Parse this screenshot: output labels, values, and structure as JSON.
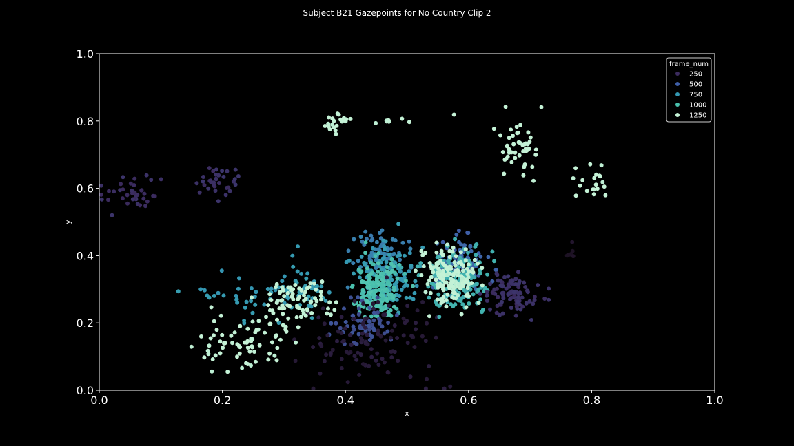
{
  "chart_data": {
    "type": "scatter",
    "title": "Subject B21 Gazepoints for No Country Clip 2",
    "xlabel": "x",
    "ylabel": "y",
    "xlim": [
      0.0,
      1.0
    ],
    "ylim": [
      0.0,
      1.0
    ],
    "x_ticks": [
      "0.0",
      "0.2",
      "0.4",
      "0.6",
      "0.8",
      "1.0"
    ],
    "y_ticks": [
      "0.0",
      "0.2",
      "0.4",
      "0.6",
      "0.8",
      "1.0"
    ],
    "grid": false,
    "background": "#000000",
    "legend": {
      "title": "frame_num",
      "placement": "top-right",
      "entries": [
        {
          "label": "250",
          "color": "#3b2b5e"
        },
        {
          "label": "500",
          "color": "#3f5fa8"
        },
        {
          "label": "750",
          "color": "#3498b2"
        },
        {
          "label": "1000",
          "color": "#49c0ad"
        },
        {
          "label": "1250",
          "color": "#c4f2d6"
        }
      ]
    },
    "color_scale": [
      {
        "frame": 0,
        "color": "#1a0f1e"
      },
      {
        "frame": 250,
        "color": "#3b2b5e"
      },
      {
        "frame": 500,
        "color": "#3f5fa8"
      },
      {
        "frame": 750,
        "color": "#3498b2"
      },
      {
        "frame": 1000,
        "color": "#49c0ad"
      },
      {
        "frame": 1250,
        "color": "#c4f2d6"
      }
    ],
    "clusters": [
      {
        "x": 0.06,
        "y": 0.59,
        "sx": 0.022,
        "sy": 0.025,
        "n": 38,
        "frame": 265
      },
      {
        "x": 0.19,
        "y": 0.61,
        "sx": 0.018,
        "sy": 0.028,
        "n": 34,
        "frame": 275
      },
      {
        "x": 0.385,
        "y": 0.795,
        "sx": 0.009,
        "sy": 0.018,
        "n": 22,
        "frame": 1260
      },
      {
        "x": 0.48,
        "y": 0.8,
        "sx": 0.018,
        "sy": 0.006,
        "n": 9,
        "frame": 1260
      },
      {
        "x": 0.575,
        "y": 0.815,
        "sx": 0.002,
        "sy": 0.002,
        "n": 1,
        "frame": 1260
      },
      {
        "x": 0.68,
        "y": 0.73,
        "sx": 0.018,
        "sy": 0.045,
        "n": 48,
        "frame": 1265
      },
      {
        "x": 0.8,
        "y": 0.625,
        "sx": 0.016,
        "sy": 0.03,
        "n": 20,
        "frame": 1265
      },
      {
        "x": 0.77,
        "y": 0.41,
        "sx": 0.006,
        "sy": 0.02,
        "n": 7,
        "frame": 35
      },
      {
        "x": 0.46,
        "y": 0.41,
        "sx": 0.022,
        "sy": 0.04,
        "n": 70,
        "frame": 640
      },
      {
        "x": 0.47,
        "y": 0.33,
        "sx": 0.025,
        "sy": 0.05,
        "n": 120,
        "frame": 760
      },
      {
        "x": 0.45,
        "y": 0.3,
        "sx": 0.017,
        "sy": 0.045,
        "n": 170,
        "frame": 1000
      },
      {
        "x": 0.43,
        "y": 0.2,
        "sx": 0.025,
        "sy": 0.035,
        "n": 60,
        "frame": 420
      },
      {
        "x": 0.44,
        "y": 0.15,
        "sx": 0.06,
        "sy": 0.06,
        "n": 110,
        "frame": 110
      },
      {
        "x": 0.58,
        "y": 0.38,
        "sx": 0.025,
        "sy": 0.04,
        "n": 90,
        "frame": 520
      },
      {
        "x": 0.58,
        "y": 0.33,
        "sx": 0.025,
        "sy": 0.045,
        "n": 180,
        "frame": 900
      },
      {
        "x": 0.575,
        "y": 0.335,
        "sx": 0.022,
        "sy": 0.04,
        "n": 160,
        "frame": 1255
      },
      {
        "x": 0.67,
        "y": 0.29,
        "sx": 0.022,
        "sy": 0.035,
        "n": 90,
        "frame": 270
      },
      {
        "x": 0.25,
        "y": 0.28,
        "sx": 0.05,
        "sy": 0.04,
        "n": 45,
        "frame": 760
      },
      {
        "x": 0.33,
        "y": 0.31,
        "sx": 0.018,
        "sy": 0.03,
        "n": 30,
        "frame": 780
      },
      {
        "x": 0.33,
        "y": 0.28,
        "sx": 0.025,
        "sy": 0.025,
        "n": 60,
        "frame": 1265
      },
      {
        "x": 0.22,
        "y": 0.14,
        "sx": 0.035,
        "sy": 0.04,
        "n": 60,
        "frame": 1260
      },
      {
        "x": 0.29,
        "y": 0.2,
        "sx": 0.02,
        "sy": 0.03,
        "n": 30,
        "frame": 1260
      }
    ]
  }
}
